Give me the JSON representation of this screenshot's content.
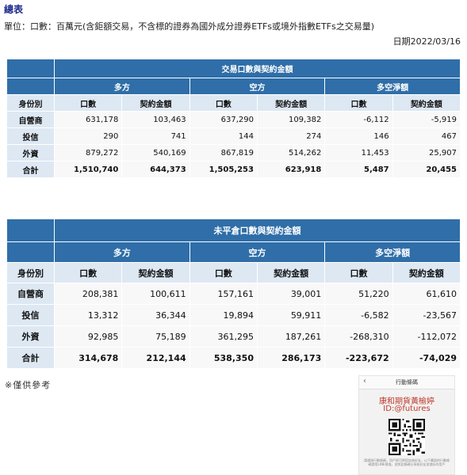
{
  "title": "總表",
  "unit_note": "單位：口數：百萬元(含鉅額交易，不含標的證券為國外成分證券ETFs或境外指數ETFs之交易量)",
  "date": "日期2022/03/16",
  "table1": {
    "title": "交易口數與契約金額",
    "groups": [
      "多方",
      "空方",
      "多空淨額"
    ],
    "identity_header": "身份別",
    "cols": [
      "口數",
      "契約金額",
      "口數",
      "契約金額",
      "口數",
      "契約金額"
    ],
    "rows": [
      {
        "label": "自營商",
        "values": [
          "631,178",
          "103,463",
          "637,290",
          "109,382",
          "-6,112",
          "-5,919"
        ]
      },
      {
        "label": "投信",
        "values": [
          "290",
          "741",
          "144",
          "274",
          "146",
          "467"
        ]
      },
      {
        "label": "外資",
        "values": [
          "879,272",
          "540,169",
          "867,819",
          "514,262",
          "11,453",
          "25,907"
        ]
      },
      {
        "label": "合計",
        "values": [
          "1,510,740",
          "644,373",
          "1,505,253",
          "623,918",
          "5,487",
          "20,455"
        ]
      }
    ]
  },
  "table2": {
    "title": "未平倉口數與契約金額",
    "groups": [
      "多方",
      "空方",
      "多空淨額"
    ],
    "identity_header": "身份別",
    "cols": [
      "口數",
      "契約金額",
      "口數",
      "契約金額",
      "口數",
      "契約金額"
    ],
    "rows": [
      {
        "label": "自營商",
        "values": [
          "208,381",
          "100,611",
          "157,161",
          "39,001",
          "51,220",
          "61,610"
        ]
      },
      {
        "label": "投信",
        "values": [
          "13,312",
          "36,344",
          "19,894",
          "59,911",
          "-6,582",
          "-23,567"
        ]
      },
      {
        "label": "外資",
        "values": [
          "92,985",
          "75,189",
          "361,295",
          "187,261",
          "-268,310",
          "-112,072"
        ]
      },
      {
        "label": "合計",
        "values": [
          "314,678",
          "212,144",
          "538,350",
          "286,173",
          "-223,672",
          "-74,029"
        ]
      }
    ]
  },
  "footnote": "※僅供參考",
  "promo": {
    "header": "行動條碼",
    "back_icon": "chevron-left-icon",
    "name": "康和期貨黃榆婷",
    "id": "ID:@futures",
    "fine_print": "請通過行動條碼，用戶即可將您加為好友，以下畫面的行動條碼請用LINE掃描，並將此條碼分享給好友並儲存的用戶"
  }
}
